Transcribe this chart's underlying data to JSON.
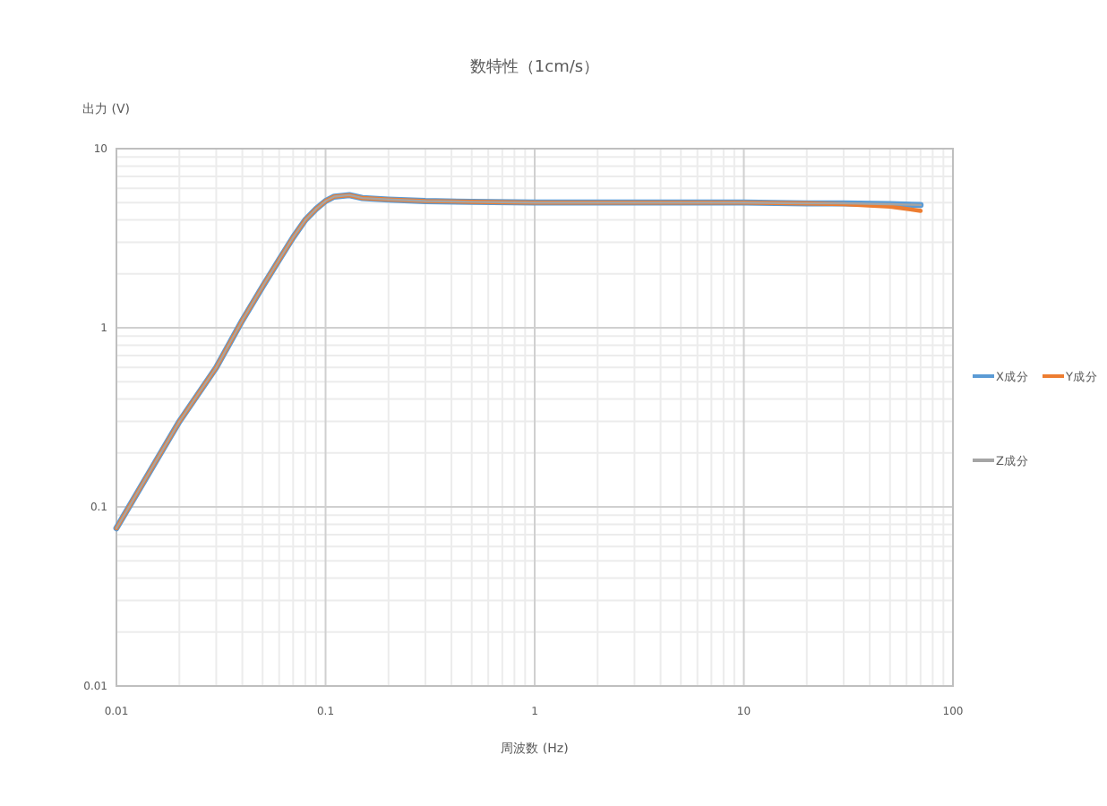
{
  "chart_data": {
    "type": "line",
    "title": "数特性（1cm/s）",
    "xlabel": "周波数 (Hz)",
    "ylabel": "出力 (V)",
    "log": "xy",
    "xlim": [
      0.01,
      100
    ],
    "ylim": [
      0.01,
      10
    ],
    "xticks": [
      0.01,
      0.1,
      1,
      10,
      100
    ],
    "yticks": [
      0.01,
      0.1,
      1,
      10
    ],
    "grid": true,
    "legend": "right",
    "marker": "none",
    "line_style": "solid",
    "x": [
      0.01,
      0.015,
      0.02,
      0.03,
      0.04,
      0.05,
      0.06,
      0.07,
      0.08,
      0.09,
      0.1,
      0.11,
      0.13,
      0.15,
      0.2,
      0.3,
      0.5,
      1,
      2,
      5,
      10,
      20,
      30,
      50,
      70
    ],
    "series": [
      {
        "name": "X成分",
        "color": "#5b9bd5",
        "values": [
          0.076,
          0.17,
          0.3,
          0.6,
          1.1,
          1.7,
          2.4,
          3.2,
          4.0,
          4.6,
          5.1,
          5.4,
          5.5,
          5.3,
          5.2,
          5.1,
          5.05,
          5.0,
          5.0,
          5.0,
          5.0,
          4.95,
          4.95,
          4.9,
          4.85
        ]
      },
      {
        "name": "Y成分",
        "color": "#ed7d31",
        "values": [
          0.076,
          0.17,
          0.3,
          0.6,
          1.1,
          1.7,
          2.4,
          3.2,
          4.0,
          4.6,
          5.1,
          5.4,
          5.5,
          5.3,
          5.2,
          5.1,
          5.05,
          5.0,
          5.0,
          5.0,
          5.0,
          4.95,
          4.9,
          4.75,
          4.5
        ]
      },
      {
        "name": "Z成分",
        "color": "#a5a5a5",
        "values": [
          0.076,
          0.17,
          0.3,
          0.6,
          1.1,
          1.7,
          2.4,
          3.2,
          4.0,
          4.6,
          5.1,
          5.4,
          5.5,
          5.3,
          5.2,
          5.1,
          5.05,
          5.0,
          5.0,
          5.0,
          5.0,
          4.95,
          4.95,
          4.9,
          4.85
        ]
      }
    ]
  }
}
